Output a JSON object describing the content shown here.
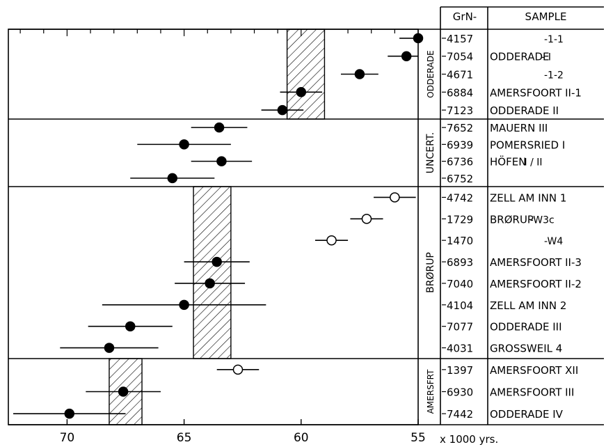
{
  "chart_data": {
    "type": "scatter",
    "x_axis": {
      "reversed": true,
      "range": [
        72,
        55
      ],
      "ticks": [
        {
          "value": 70,
          "label": "70"
        },
        {
          "value": 65,
          "label": "65"
        },
        {
          "value": 60,
          "label": "60"
        },
        {
          "value": 55,
          "label": "55"
        }
      ],
      "unit_label": "x 1000 yrs."
    },
    "header": {
      "code_col": "GrN-",
      "sample_col": "SAMPLE"
    },
    "groups": [
      {
        "name": "ODDERADE",
        "band": [
          59,
          60.6
        ],
        "rows": [
          {
            "code": "4157",
            "x": 55.0,
            "err": 0.8,
            "filled": true,
            "label": "",
            "label_suffix": "-1-1"
          },
          {
            "code": "7054",
            "x": 55.5,
            "err": 0.8,
            "filled": true,
            "label": "ODDERADE",
            "label_suffix": "- I"
          },
          {
            "code": "4671",
            "x": 57.5,
            "err": 0.8,
            "filled": true,
            "label": "",
            "label_suffix": "-1-2"
          },
          {
            "code": "6884",
            "x": 60.0,
            "err": 0.9,
            "filled": true,
            "label": "AMERSFOORT II-1",
            "label_suffix": ""
          },
          {
            "code": "7123",
            "x": 60.8,
            "err": 0.9,
            "filled": true,
            "label": "ODDERADE II",
            "label_suffix": ""
          }
        ]
      },
      {
        "name": "UNCERT.",
        "band": null,
        "rows": [
          {
            "code": "7652",
            "x": 63.5,
            "err": 1.2,
            "filled": true,
            "label": "MAUERN III",
            "label_suffix": ""
          },
          {
            "code": "6939",
            "x": 65.0,
            "err": 2.0,
            "filled": true,
            "label": "POMERSRIED I",
            "label_suffix": ""
          },
          {
            "code": "6736",
            "x": 63.4,
            "err": 1.3,
            "filled": true,
            "label": "HÖFEN",
            "label_suffix": "I / II"
          },
          {
            "code": "6752",
            "x": 65.5,
            "err": 1.8,
            "filled": true,
            "label": "",
            "label_suffix": ""
          }
        ]
      },
      {
        "name": "BRØRUP",
        "band": [
          63,
          64.6
        ],
        "rows": [
          {
            "code": "4742",
            "x": 56.0,
            "err": 0.9,
            "filled": false,
            "label": "ZELL AM INN 1",
            "label_suffix": ""
          },
          {
            "code": "1729",
            "x": 57.2,
            "err": 0.7,
            "filled": false,
            "label": "BRØRUP",
            "label_suffix": "-W3c"
          },
          {
            "code": "1470",
            "x": 58.7,
            "err": 0.7,
            "filled": false,
            "label": "",
            "label_suffix": "-W4"
          },
          {
            "code": "6893",
            "x": 63.6,
            "err": 1.4,
            "filled": true,
            "label": "AMERSFOORT II-3",
            "label_suffix": ""
          },
          {
            "code": "7040",
            "x": 63.9,
            "err": 1.5,
            "filled": true,
            "label": "AMERSFOORT II-2",
            "label_suffix": ""
          },
          {
            "code": "4104",
            "x": 65.0,
            "err": 3.5,
            "filled": true,
            "label": "ZELL AM INN 2",
            "label_suffix": ""
          },
          {
            "code": "7077",
            "x": 67.3,
            "err": 1.8,
            "filled": true,
            "label": "ODDERADE III",
            "label_suffix": ""
          },
          {
            "code": "4031",
            "x": 68.2,
            "err": 2.1,
            "filled": true,
            "label": "GROSSWEIL 4",
            "label_suffix": ""
          }
        ]
      },
      {
        "name": "AMERSFRT",
        "band": [
          66.8,
          68.2
        ],
        "rows": [
          {
            "code": "1397",
            "x": 62.7,
            "err": 0.9,
            "filled": false,
            "label": "AMERSFOORT XII",
            "label_suffix": ""
          },
          {
            "code": "6930",
            "x": 67.6,
            "err": 1.6,
            "filled": true,
            "label": "AMERSFOORT III",
            "label_suffix": ""
          },
          {
            "code": "7442",
            "x": 69.9,
            "err": 2.4,
            "filled": true,
            "label": "ODDERADE IV",
            "label_suffix": ""
          }
        ]
      }
    ]
  }
}
